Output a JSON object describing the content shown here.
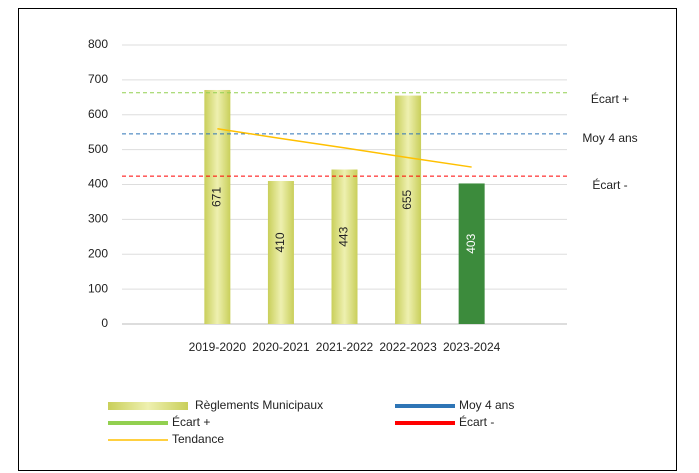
{
  "chart_data": {
    "type": "bar",
    "categories": [
      null,
      "2019-2020",
      "2020-2021",
      "2021-2022",
      "2022-2023",
      "2023-2024",
      null
    ],
    "series": [
      {
        "name": "Règlements Municipaux",
        "type": "bar",
        "color": "#e2e58f",
        "point_colors": [
          null,
          "#e2e58f",
          "#e2e58f",
          "#e2e58f",
          "#e2e58f",
          "#3c8b3c",
          null
        ],
        "label_colors": [
          null,
          "#222222",
          "#222222",
          "#222222",
          "#222222",
          "#ffffff",
          null
        ],
        "values": [
          null,
          671,
          410,
          443,
          655,
          403,
          null
        ]
      },
      {
        "name": "Moy 4 ans",
        "type": "line",
        "dashed": true,
        "color": "#2e75b6",
        "values": [
          545,
          545,
          545,
          545,
          545,
          545,
          545
        ]
      },
      {
        "name": "Écart +",
        "type": "line",
        "dashed": true,
        "color": "#92d050",
        "values": [
          663,
          663,
          663,
          663,
          663,
          663,
          663
        ]
      },
      {
        "name": "Écart -",
        "type": "line",
        "dashed": true,
        "color": "#ff0000",
        "values": [
          424,
          424,
          424,
          424,
          424,
          424,
          424
        ]
      },
      {
        "name": "Tendance",
        "type": "line",
        "dashed": false,
        "color": "#ffc000",
        "values": [
          null,
          560,
          532,
          505,
          477,
          450,
          null
        ]
      }
    ],
    "annotations": [
      "Écart +",
      "Moy 4 ans",
      "Écart -"
    ],
    "ylim": [
      0,
      800
    ],
    "yticks": [
      0,
      100,
      200,
      300,
      400,
      500,
      600,
      700,
      800
    ],
    "grid": true
  }
}
